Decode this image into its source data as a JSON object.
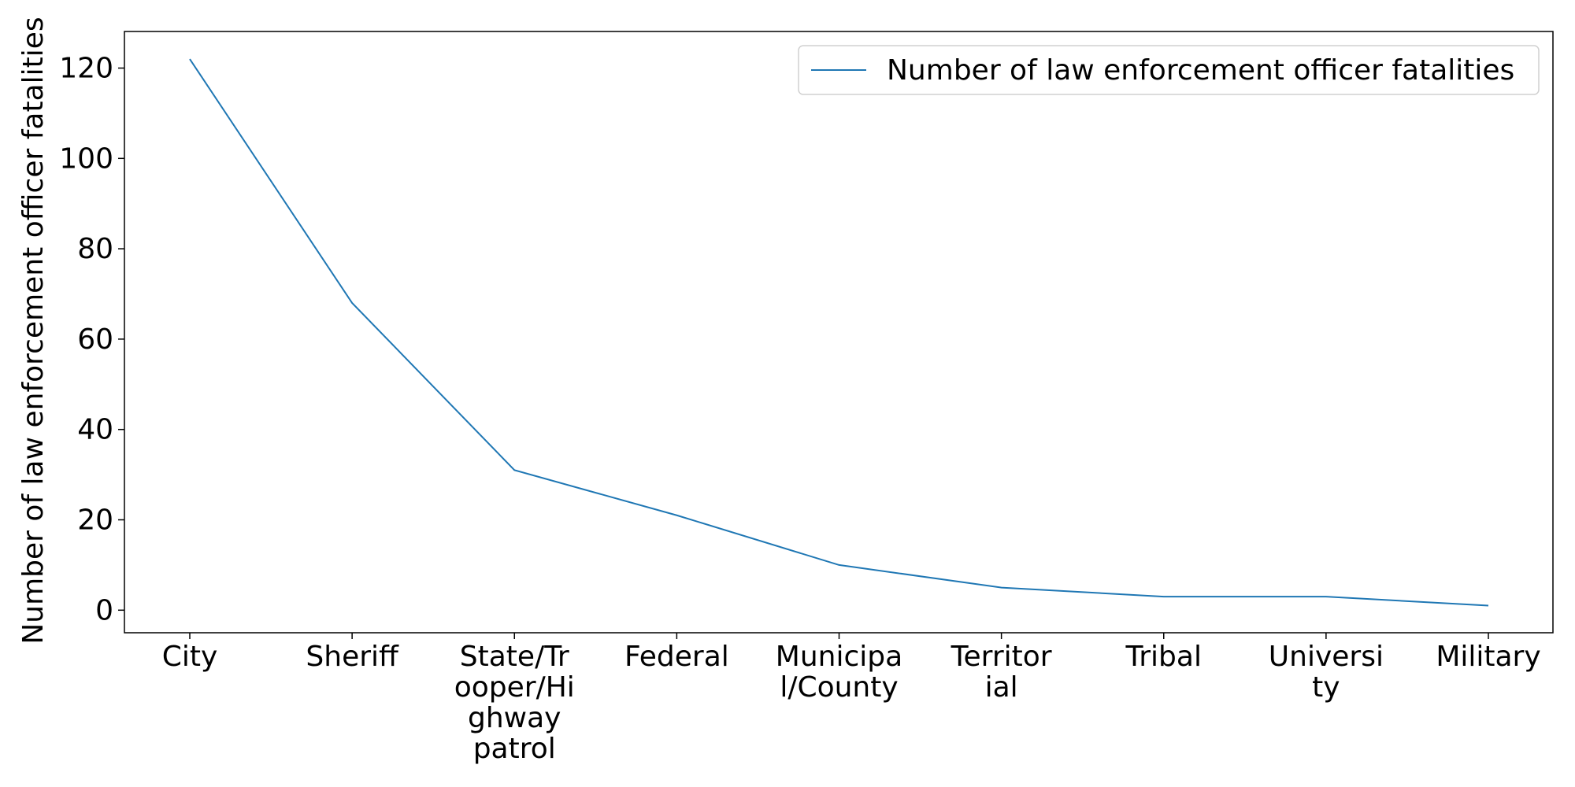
{
  "chart_data": {
    "type": "line",
    "categories": [
      [
        "City"
      ],
      [
        "Sheriff"
      ],
      [
        "State/Tr",
        "ooper/Hi",
        "ghway",
        "patrol"
      ],
      [
        "Federal"
      ],
      [
        "Municipa",
        "l/County"
      ],
      [
        "Territor",
        "ial"
      ],
      [
        "Tribal"
      ],
      [
        "Universi",
        "ty"
      ],
      [
        "Military"
      ]
    ],
    "series": [
      {
        "name": "Number of law enforcement officer fatalities",
        "values": [
          122,
          68,
          31,
          21,
          10,
          5,
          3,
          3,
          1
        ],
        "color": "#1f77b4"
      }
    ],
    "title": "",
    "xlabel": "",
    "ylabel": "Number of law enforcement officer fatalities",
    "ylim": [
      -5,
      128.1
    ],
    "yticks": [
      0,
      20,
      40,
      60,
      80,
      100,
      120
    ],
    "legend": "top-right",
    "grid": false
  }
}
